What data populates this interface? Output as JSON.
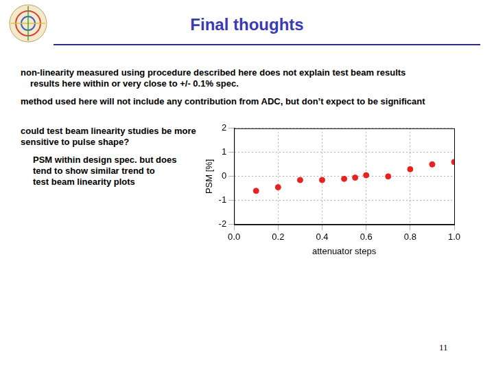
{
  "slide": {
    "title": "Final thoughts",
    "paragraphs": [
      [
        "non-linearity measured using procedure described here does not explain test beam results",
        "results here within or very close to +/- 0.1% spec."
      ],
      [
        "method used here will not include any contribution from ADC, but don’t expect to be significant"
      ],
      [
        "could test beam linearity studies be more",
        "sensitive to pulse shape?"
      ],
      [
        "PSM within design spec. but does",
        "tend to show similar trend to",
        "test beam linearity plots"
      ]
    ],
    "page_number": "11"
  },
  "chart_data": {
    "type": "scatter",
    "x_label": "attenuator steps",
    "y_label": "PSM [%]",
    "x": [
      0.1,
      0.2,
      0.3,
      0.4,
      0.5,
      0.55,
      0.6,
      0.7,
      0.8,
      0.9,
      1.0
    ],
    "values": [
      -0.6,
      -0.45,
      -0.15,
      -0.15,
      -0.1,
      -0.05,
      0.05,
      0.0,
      0.3,
      0.5,
      0.6
    ],
    "color": "#e8231f",
    "marker": "circle",
    "xlim": [
      0,
      1
    ],
    "xticks": [
      {
        "value": 0,
        "label": "0.0"
      },
      0.2,
      0.4,
      0.6,
      0.8,
      {
        "value": 1,
        "label": "1.0"
      }
    ],
    "ylim": [
      -2,
      2
    ],
    "yticks": [
      -2,
      -1,
      0,
      1,
      2
    ],
    "grid": true
  }
}
